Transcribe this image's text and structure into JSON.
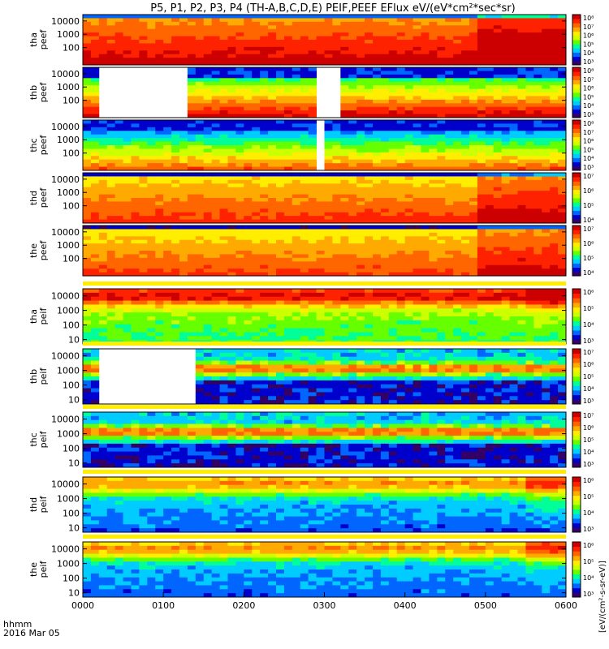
{
  "title": "P5, P1, P2, P3, P4 (TH-A,B,C,D,E) PEIF,PEEF EFlux eV/(eV*cm²*sec*sr)",
  "x_axis": {
    "ticks": [
      "0000",
      "0100",
      "0200",
      "0300",
      "0400",
      "0500",
      "0600"
    ],
    "label_line1": "hhmm",
    "label_line2": "2016 Mar 05"
  },
  "colorbar_label": "[eV/(cm²-s-sr-eV)]",
  "colorscale": [
    "#330066",
    "#0000cc",
    "#0066ff",
    "#00ccff",
    "#00ff99",
    "#66ff00",
    "#ccff00",
    "#ffee00",
    "#ffaa00",
    "#ff6600",
    "#ff2200",
    "#cc0000"
  ],
  "chart_data": [
    {
      "type": "heatmap",
      "ylabel_line1": "tha",
      "ylabel_line2": "peef",
      "yticks": [
        "10000",
        "1000",
        "100"
      ],
      "ytick_values": [
        10000,
        1000,
        100
      ],
      "ylim": [
        5,
        30000
      ],
      "y_log": true,
      "xlim": [
        "0000",
        "0600"
      ],
      "colorbar_ticks": [
        "10⁸",
        "10⁷",
        "10⁶",
        "10⁵",
        "10⁴",
        "10³"
      ],
      "gaps": [],
      "quality_flag": false,
      "base_level": 0.72,
      "style": "hot"
    },
    {
      "type": "heatmap",
      "ylabel_line1": "thb",
      "ylabel_line2": "peef",
      "yticks": [
        "10000",
        "1000",
        "100"
      ],
      "ytick_values": [
        10000,
        1000,
        100
      ],
      "ylim": [
        5,
        30000
      ],
      "y_log": true,
      "xlim": [
        "0000",
        "0600"
      ],
      "colorbar_ticks": [
        "10⁸",
        "10⁷",
        "10⁶",
        "10⁵",
        "10⁴",
        "10³"
      ],
      "gaps": [
        [
          0.25,
          1.3
        ],
        [
          2.93,
          3.23
        ]
      ],
      "quality_flag": false,
      "base_level": 0.6,
      "style": "banded"
    },
    {
      "type": "heatmap",
      "ylabel_line1": "thc",
      "ylabel_line2": "peef",
      "yticks": [
        "10000",
        "1000",
        "100"
      ],
      "ytick_values": [
        10000,
        1000,
        100
      ],
      "ylim": [
        5,
        30000
      ],
      "y_log": true,
      "xlim": [
        "0000",
        "0600"
      ],
      "colorbar_ticks": [
        "10⁸",
        "10⁷",
        "10⁶",
        "10⁵",
        "10⁴",
        "10³"
      ],
      "gaps": [
        [
          2.92,
          3.04
        ]
      ],
      "quality_flag": false,
      "base_level": 0.45,
      "style": "banded"
    },
    {
      "type": "heatmap",
      "ylabel_line1": "thd",
      "ylabel_line2": "peef",
      "yticks": [
        "10000",
        "1000",
        "100"
      ],
      "ytick_values": [
        10000,
        1000,
        100
      ],
      "ylim": [
        5,
        30000
      ],
      "y_log": true,
      "xlim": [
        "0000",
        "0600"
      ],
      "colorbar_ticks": [
        "10⁷",
        "10⁶",
        "10⁵",
        "10⁴"
      ],
      "gaps": [],
      "quality_flag": false,
      "base_level": 0.62,
      "style": "hot"
    },
    {
      "type": "heatmap",
      "ylabel_line1": "the",
      "ylabel_line2": "peef",
      "yticks": [
        "10000",
        "1000",
        "100"
      ],
      "ytick_values": [
        10000,
        1000,
        100
      ],
      "ylim": [
        5,
        30000
      ],
      "y_log": true,
      "xlim": [
        "0000",
        "0600"
      ],
      "colorbar_ticks": [
        "10⁷",
        "10⁶",
        "10⁵",
        "10⁴"
      ],
      "gaps": [],
      "quality_flag": false,
      "base_level": 0.6,
      "style": "hot"
    },
    {
      "type": "heatmap",
      "ylabel_line1": "tha",
      "ylabel_line2": "peif",
      "yticks": [
        "10000",
        "1000",
        "100",
        "10"
      ],
      "ytick_values": [
        10000,
        1000,
        100,
        10
      ],
      "ylim": [
        5,
        30000
      ],
      "y_log": true,
      "xlim": [
        "0000",
        "0600"
      ],
      "colorbar_ticks": [
        "10⁶",
        "10⁵",
        "10⁴",
        "10³"
      ],
      "gaps": [],
      "quality_flag": true,
      "base_level": 0.55,
      "style": "ion"
    },
    {
      "type": "heatmap",
      "ylabel_line1": "thb",
      "ylabel_line2": "peif",
      "yticks": [
        "10000",
        "1000",
        "100",
        "10"
      ],
      "ytick_values": [
        10000,
        1000,
        100,
        10
      ],
      "ylim": [
        5,
        30000
      ],
      "y_log": true,
      "xlim": [
        "0000",
        "0600"
      ],
      "colorbar_ticks": [
        "10⁷",
        "10⁶",
        "10⁵",
        "10⁴",
        "10³"
      ],
      "gaps": [
        [
          0.25,
          1.36
        ]
      ],
      "quality_flag": true,
      "base_level": 0.3,
      "style": "ionband"
    },
    {
      "type": "heatmap",
      "ylabel_line1": "thc",
      "ylabel_line2": "peif",
      "yticks": [
        "10000",
        "1000",
        "100",
        "10"
      ],
      "ytick_values": [
        10000,
        1000,
        100,
        10
      ],
      "ylim": [
        5,
        30000
      ],
      "y_log": true,
      "xlim": [
        "0000",
        "0600"
      ],
      "colorbar_ticks": [
        "10⁷",
        "10⁶",
        "10⁵",
        "10⁴",
        "10³"
      ],
      "gaps": [],
      "quality_flag": true,
      "base_level": 0.3,
      "style": "ionband"
    },
    {
      "type": "heatmap",
      "ylabel_line1": "thd",
      "ylabel_line2": "peif",
      "yticks": [
        "10000",
        "1000",
        "100",
        "10"
      ],
      "ytick_values": [
        10000,
        1000,
        100,
        10
      ],
      "ylim": [
        5,
        30000
      ],
      "y_log": true,
      "xlim": [
        "0000",
        "0600"
      ],
      "colorbar_ticks": [
        "10⁶",
        "10⁵",
        "10⁴",
        "10³"
      ],
      "gaps": [],
      "quality_flag": true,
      "base_level": 0.35,
      "style": "ion"
    },
    {
      "type": "heatmap",
      "ylabel_line1": "the",
      "ylabel_line2": "peif",
      "yticks": [
        "10000",
        "1000",
        "100",
        "10"
      ],
      "ytick_values": [
        10000,
        1000,
        100,
        10
      ],
      "ylim": [
        5,
        30000
      ],
      "y_log": true,
      "xlim": [
        "0000",
        "0600"
      ],
      "colorbar_ticks": [
        "10⁶",
        "10⁵",
        "10⁴",
        "10³"
      ],
      "gaps": [],
      "quality_flag": true,
      "base_level": 0.35,
      "style": "ion"
    }
  ]
}
